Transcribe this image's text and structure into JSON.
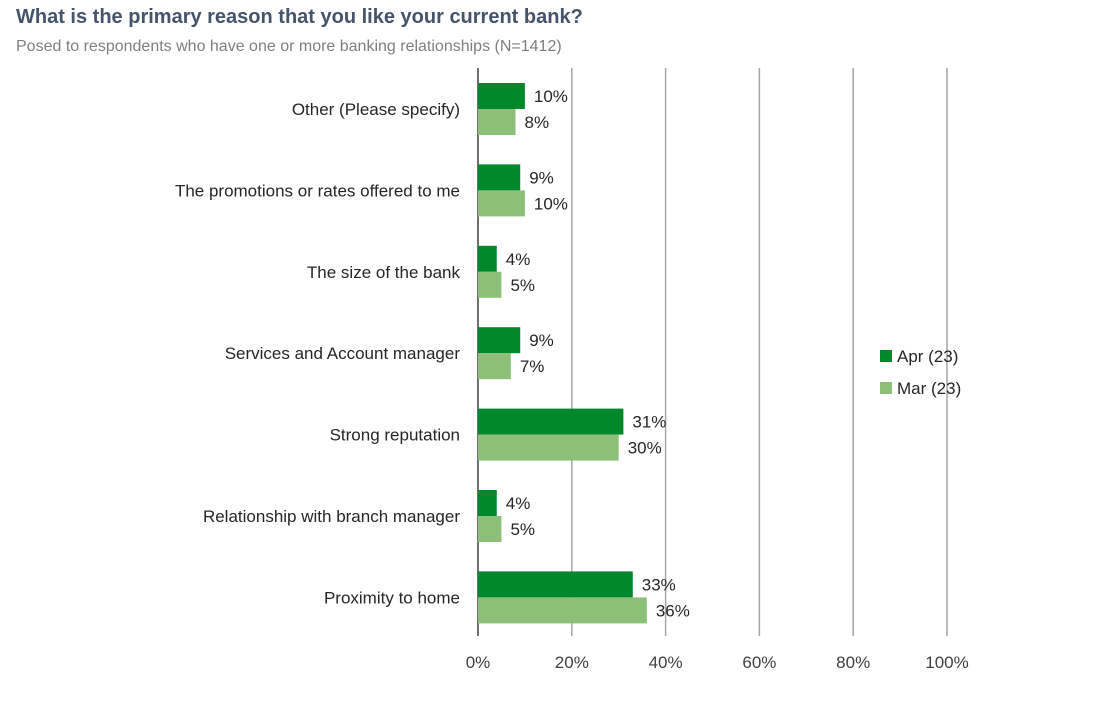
{
  "chart_data": {
    "type": "bar",
    "orientation": "horizontal",
    "title": "What is the primary reason that you like your current bank?",
    "subtitle": "Posed to respondents who have one or more banking relationships (N=1412)",
    "categories": [
      "Other (Please specify)",
      "The promotions or rates offered to me",
      "The size of the bank",
      "Services and Account manager",
      "Strong reputation",
      "Relationship with branch manager",
      "Proximity to home"
    ],
    "series": [
      {
        "name": "Apr (23)",
        "color": "#00882b",
        "values": [
          10,
          9,
          4,
          9,
          31,
          4,
          33
        ],
        "labels": [
          "10%",
          "9%",
          "4%",
          "9%",
          "31%",
          "4%",
          "33%"
        ]
      },
      {
        "name": "Mar (23)",
        "color": "#8cc078",
        "values": [
          8,
          10,
          5,
          7,
          30,
          5,
          36
        ],
        "labels": [
          "8%",
          "10%",
          "5%",
          "7%",
          "30%",
          "5%",
          "36%"
        ]
      }
    ],
    "xlim": [
      0,
      100
    ],
    "xticks": [
      0,
      20,
      40,
      60,
      80,
      100
    ],
    "xtick_labels": [
      "0%",
      "20%",
      "40%",
      "60%",
      "80%",
      "100%"
    ],
    "grid": "vertical",
    "legend_position": "right"
  }
}
